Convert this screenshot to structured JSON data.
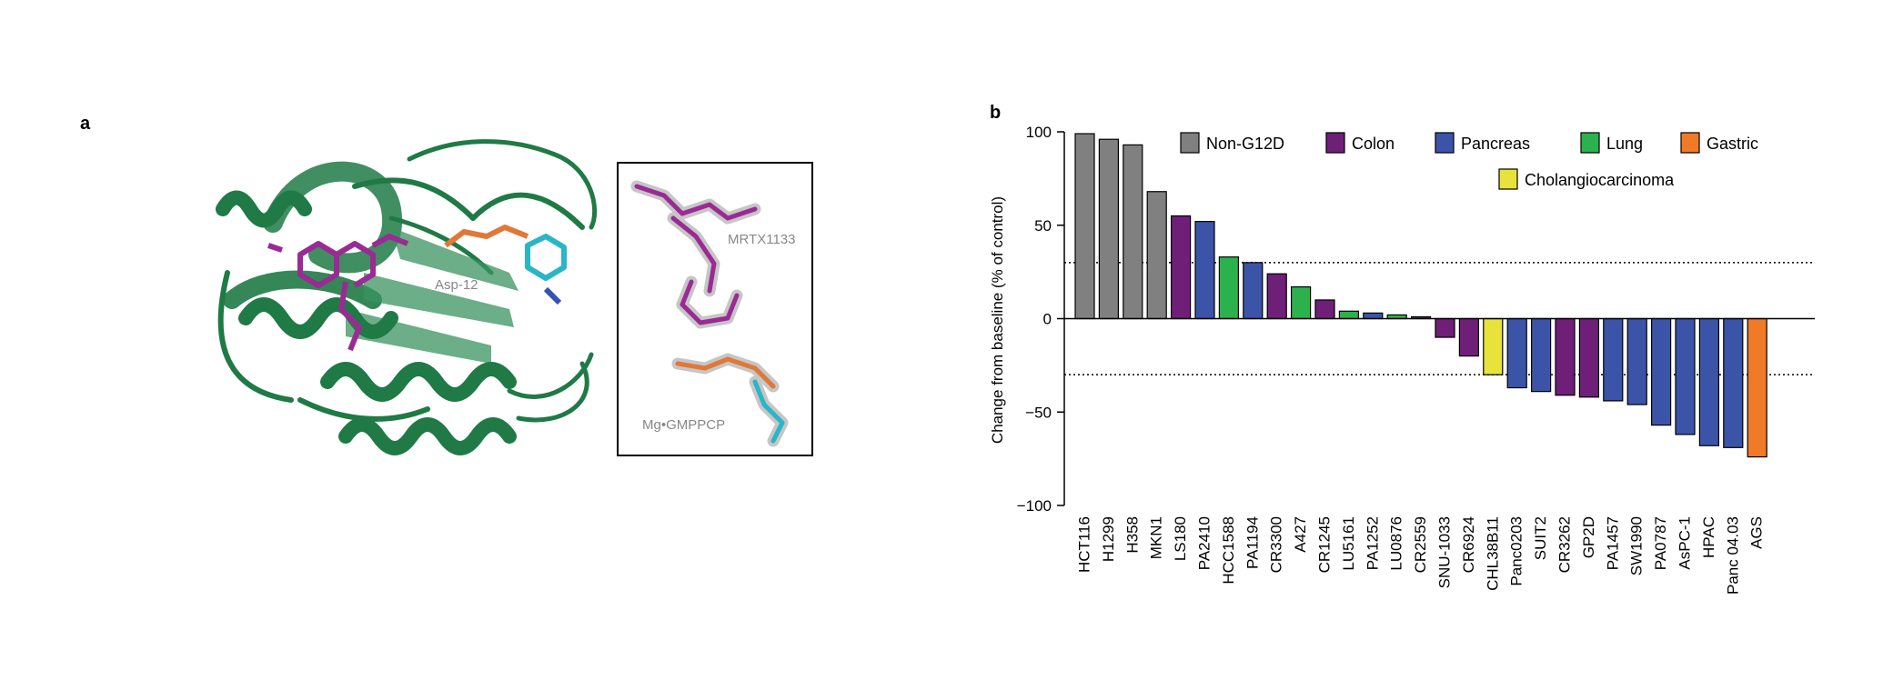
{
  "panel_a": {
    "letter": "a",
    "labels": {
      "residue": "Asp-12",
      "ligand": "MRTX1133",
      "cofactor": "Mg•GMPPCP"
    }
  },
  "panel_b": {
    "letter": "b"
  },
  "colors": {
    "Non-G12D": "#808080",
    "Colon": "#6f1f78",
    "Pancreas": "#3b54a8",
    "Lung": "#2bb24c",
    "Gastric": "#f07a28",
    "Cholangiocarcinoma": "#e8e33a"
  },
  "chart_data": {
    "type": "bar",
    "title": "",
    "xlabel": "",
    "ylabel": "Change from baseline (% of control)",
    "ylim": [
      -100,
      100
    ],
    "yticks": [
      100,
      50,
      0,
      -50,
      -100
    ],
    "reference_lines": [
      30,
      -30
    ],
    "grid": false,
    "legend": {
      "placement": "top",
      "entries": [
        "Non-G12D",
        "Colon",
        "Pancreas",
        "Lung",
        "Gastric",
        "Cholangiocarcinoma"
      ]
    },
    "categories": [
      "HCT116",
      "H1299",
      "H358",
      "MKN1",
      "LS180",
      "PA2410",
      "HCC1588",
      "PA1194",
      "CR3300",
      "A427",
      "CR1245",
      "LU5161",
      "PA1252",
      "LU0876",
      "CR2559",
      "SNU-1033",
      "CR6924",
      "CHL38B11",
      "Panc0203",
      "SUIT2",
      "CR3262",
      "GP2D",
      "PA1457",
      "SW1990",
      "PA0787",
      "AsPC-1",
      "HPAC",
      "Panc 04.03",
      "AGS"
    ],
    "values": [
      99,
      96,
      93,
      68,
      55,
      52,
      33,
      30,
      24,
      17,
      10,
      4,
      3,
      2,
      1,
      -10,
      -20,
      -30,
      -37,
      -39,
      -41,
      -42,
      -44,
      -46,
      -57,
      -62,
      -68,
      -69,
      -74
    ],
    "groups": [
      "Non-G12D",
      "Non-G12D",
      "Non-G12D",
      "Non-G12D",
      "Colon",
      "Pancreas",
      "Lung",
      "Pancreas",
      "Colon",
      "Lung",
      "Colon",
      "Lung",
      "Pancreas",
      "Lung",
      "Colon",
      "Colon",
      "Colon",
      "Cholangiocarcinoma",
      "Pancreas",
      "Pancreas",
      "Colon",
      "Colon",
      "Pancreas",
      "Pancreas",
      "Pancreas",
      "Pancreas",
      "Pancreas",
      "Pancreas",
      "Gastric"
    ]
  }
}
